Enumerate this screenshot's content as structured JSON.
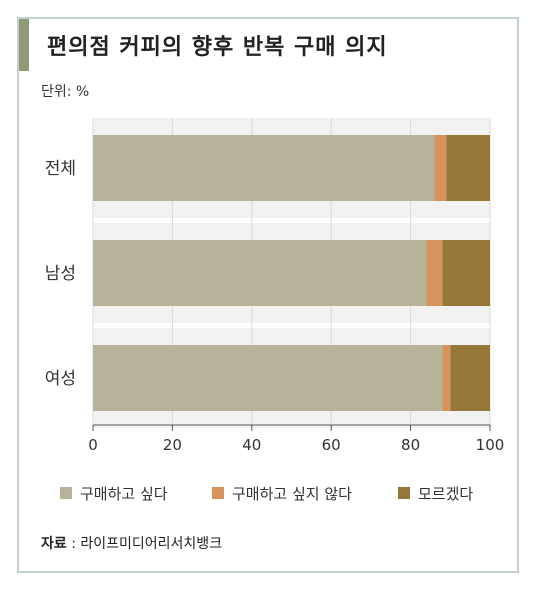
{
  "title": "편의점 커피의 향후 반복 구매 의지",
  "unit_label": "단위: %",
  "source": {
    "label": "자료",
    "sep": " : ",
    "text": "라이프미디어리서치뱅크"
  },
  "colors": {
    "accent": "#8c9a78",
    "frame": "#c5d1cf",
    "band": "#f2f2f0"
  },
  "chart_data": {
    "type": "bar",
    "orientation": "horizontal",
    "stacked": true,
    "categories": [
      "전체",
      "남성",
      "여성"
    ],
    "series": [
      {
        "name": "구매하고 싶다",
        "color": "#b9b29a",
        "values": [
          86,
          84,
          88
        ]
      },
      {
        "name": "구매하고 싶지 않다",
        "color": "#d6935c",
        "values": [
          3,
          4,
          2
        ]
      },
      {
        "name": "모르겠다",
        "color": "#957737",
        "values": [
          11,
          12,
          10
        ]
      }
    ],
    "xlim": [
      0,
      100
    ],
    "xticks": [
      0,
      20,
      40,
      60,
      80,
      100
    ],
    "legend_position": "bottom",
    "grid": true
  }
}
